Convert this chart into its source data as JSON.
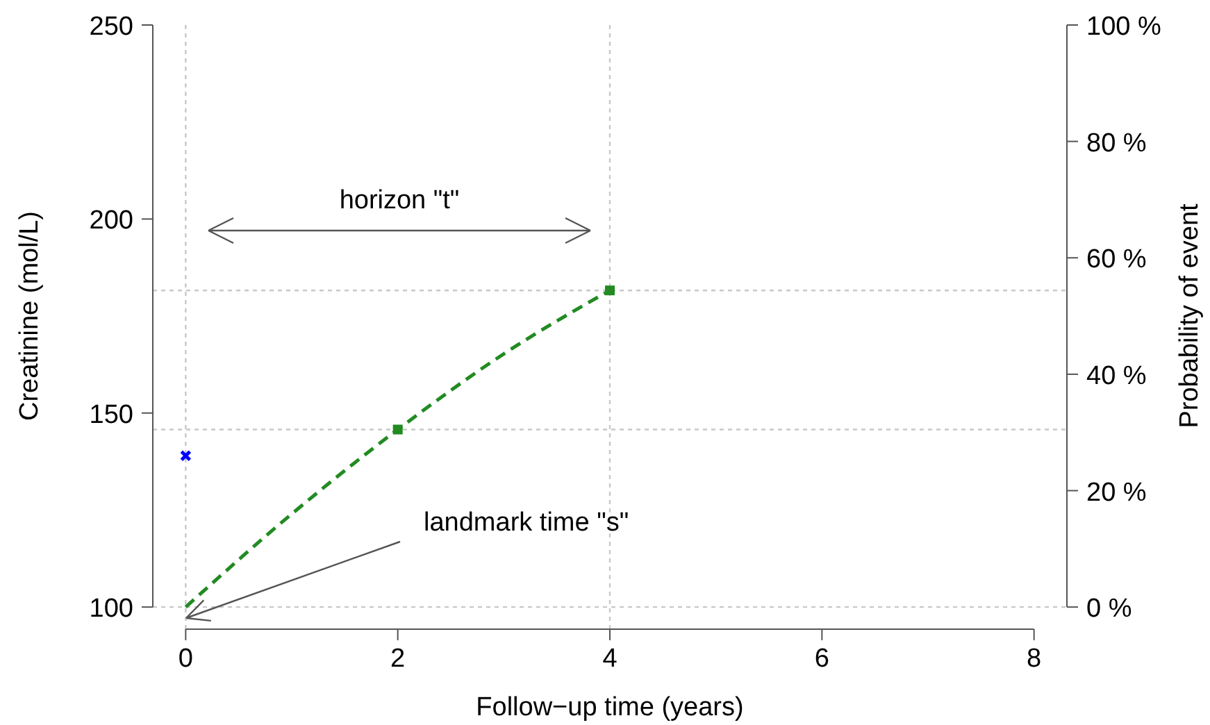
{
  "chart_data": {
    "type": "line",
    "xlabel": "Follow−up time (years)",
    "ylabel": "Creatinine (mol/L)",
    "y2label": "Probability of event",
    "xlim": [
      -0.31,
      8.31
    ],
    "xticks": [
      0,
      2,
      4,
      6,
      8
    ],
    "ylim": [
      94.3,
      250
    ],
    "yticks": [
      100,
      150,
      200,
      250
    ],
    "y2lim": [
      -3.8,
      100
    ],
    "y2ticks": [
      {
        "value": 0,
        "label": "0 %"
      },
      {
        "value": 20,
        "label": "20 %"
      },
      {
        "value": 40,
        "label": "40 %"
      },
      {
        "value": 60,
        "label": "60 %"
      },
      {
        "value": 80,
        "label": "80 %"
      },
      {
        "value": 100,
        "label": "100 %"
      }
    ],
    "series": [
      {
        "type": "scatter",
        "color": "#0000ff",
        "marker": "cross",
        "x": [
          0
        ],
        "values": [
          139
        ]
      },
      {
        "type": "line",
        "axis": "y2",
        "color": "#228b22",
        "line_style": "dashed",
        "marker": "none",
        "x": [
          0,
          1,
          2,
          3,
          4
        ],
        "values": [
          0,
          16,
          30.5,
          43.5,
          54.4
        ]
      },
      {
        "type": "scatter",
        "axis": "y2",
        "color": "#228b22",
        "marker": "square",
        "x": [
          2,
          4
        ],
        "values": [
          30.5,
          54.4
        ]
      }
    ],
    "ref_lines": [
      {
        "axis": "x",
        "value": 0,
        "color": "#c8c8c8",
        "line_style": "dotted"
      },
      {
        "axis": "x",
        "value": 4,
        "color": "#c8c8c8",
        "line_style": "dotted"
      },
      {
        "axis": "y2",
        "value": 0,
        "color": "#c8c8c8",
        "line_style": "dotted"
      },
      {
        "axis": "y2",
        "value": 30.5,
        "color": "#c8c8c8",
        "line_style": "dotted"
      },
      {
        "axis": "y2",
        "value": 54.4,
        "color": "#c8c8c8",
        "line_style": "dotted"
      }
    ],
    "annotations": [
      "horizon \"t\"",
      "landmark time \"s\""
    ],
    "grid": false
  }
}
